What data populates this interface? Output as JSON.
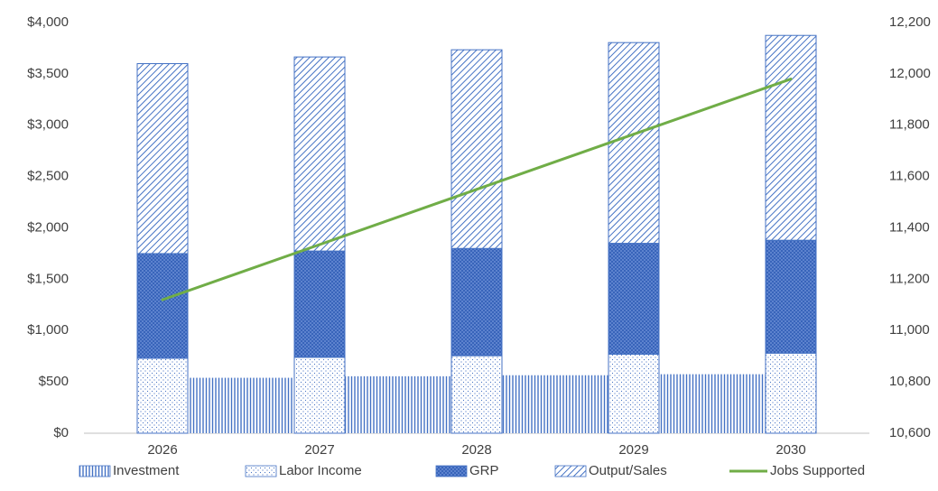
{
  "chart_data": {
    "type": "bar",
    "categories": [
      "2026",
      null,
      "2027",
      null,
      "2028",
      null,
      "2029",
      null,
      "2030"
    ],
    "series": [
      {
        "name": "Investment",
        "type": "bar",
        "pattern": "vertical",
        "color": "#4472c4",
        "values": [
          null,
          540,
          null,
          555,
          null,
          565,
          null,
          575,
          null
        ]
      },
      {
        "name": "Labor Income",
        "type": "bar",
        "pattern": "dots",
        "color": "#4472c4",
        "values": [
          730,
          null,
          740,
          null,
          755,
          null,
          770,
          null,
          780
        ]
      },
      {
        "name": "GRP",
        "type": "bar",
        "pattern": "crosshatch",
        "color": "#4472c4",
        "values": [
          1020,
          null,
          1035,
          null,
          1045,
          null,
          1080,
          null,
          1100
        ]
      },
      {
        "name": "Output/Sales",
        "type": "bar",
        "pattern": "diagonal",
        "color": "#4472c4",
        "values": [
          1850,
          null,
          1890,
          null,
          1935,
          null,
          1955,
          null,
          1995
        ]
      },
      {
        "name": "Jobs Supported",
        "type": "line",
        "axis": "y2",
        "color": "#70ad47",
        "values": [
          11120,
          null,
          11335,
          null,
          11550,
          null,
          11765,
          null,
          11980
        ]
      }
    ],
    "ylim": [
      0,
      4000
    ],
    "yticks": [
      {
        "value": 0,
        "label": "$0"
      },
      {
        "value": 500,
        "label": "$500"
      },
      {
        "value": 1000,
        "label": "$1,000"
      },
      {
        "value": 1500,
        "label": "$1,500"
      },
      {
        "value": 2000,
        "label": "$2,000"
      },
      {
        "value": 2500,
        "label": "$2,500"
      },
      {
        "value": 3000,
        "label": "$3,000"
      },
      {
        "value": 3500,
        "label": "$3,500"
      },
      {
        "value": 4000,
        "label": "$4,000"
      }
    ],
    "y2lim": [
      10600,
      12200
    ],
    "y2ticks": [
      {
        "value": 10600,
        "label": "10,600"
      },
      {
        "value": 10800,
        "label": "10,800"
      },
      {
        "value": 11000,
        "label": "11,000"
      },
      {
        "value": 11200,
        "label": "11,200"
      },
      {
        "value": 11400,
        "label": "11,400"
      },
      {
        "value": 11600,
        "label": "11,600"
      },
      {
        "value": 11800,
        "label": "11,800"
      },
      {
        "value": 12000,
        "label": "12,000"
      },
      {
        "value": 12200,
        "label": "12,200"
      }
    ],
    "legend": "bottom",
    "grid": false
  }
}
